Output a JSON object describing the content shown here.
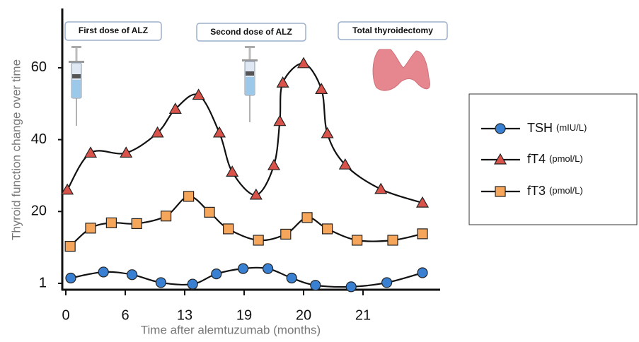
{
  "chart_data": {
    "type": "line",
    "y_label": "Thyroid function change over time",
    "x_label": "Time after alemtuzumab (months)",
    "xscale": "tick-spaced",
    "yscale": "tick-spaced",
    "xlim": [
      -0.1,
      22.3
    ],
    "xticks": [
      0,
      6,
      13,
      19,
      20,
      21
    ],
    "ylim": [
      -0.6,
      77
    ],
    "yticks": [
      1,
      20,
      40,
      60
    ],
    "line_color": "#111111",
    "legend": "right",
    "annotations": [
      "First dose of ALZ",
      "Second dose of ALZ",
      "Total thyroidectomy"
    ],
    "series": [
      {
        "name": "TSH",
        "unit": "(mIU/L)",
        "color": "#3a80d2",
        "marker": "circle",
        "x": [
          0.5,
          3.8,
          6.8,
          10.2,
          13.8,
          16.2,
          18.9,
          19.4,
          19.8,
          20.2,
          20.8,
          21.4,
          22.0
        ],
        "values": [
          2.4,
          4.0,
          3.3,
          1.2,
          0.8,
          3.5,
          4.9,
          4.9,
          2.4,
          0.5,
          0.1,
          1.2,
          3.8
        ]
      },
      {
        "name": "fT4",
        "unit": "(pmol/L)",
        "color": "#d9534a",
        "marker": "triangle",
        "x": [
          0.15,
          2.5,
          6.1,
          9.8,
          11.9,
          14.4,
          16.5,
          17.8,
          19.2,
          19.5,
          19.6,
          19.65,
          20.0,
          20.3,
          20.4,
          20.7,
          21.3,
          22.0
        ],
        "values": [
          26,
          36.3,
          36.3,
          41.9,
          48.5,
          52.4,
          41.9,
          31,
          24.6,
          32.8,
          45.1,
          55.8,
          61.2,
          54,
          41.7,
          33,
          26.2,
          22.4
        ]
      },
      {
        "name": "fT3",
        "unit": "(pmol/L)",
        "color": "#f5a65b",
        "marker": "square",
        "x": [
          0.44,
          2.5,
          4.6,
          7.35,
          10.8,
          13.4,
          15.5,
          17.4,
          19.24,
          19.7,
          20.06,
          20.4,
          20.9,
          21.5,
          22.0
        ],
        "values": [
          10.8,
          15.6,
          17.0,
          16.8,
          18.8,
          24.2,
          19.8,
          15.4,
          12.4,
          14.0,
          18.4,
          15.4,
          12.4,
          12.4,
          14.1
        ]
      }
    ]
  }
}
